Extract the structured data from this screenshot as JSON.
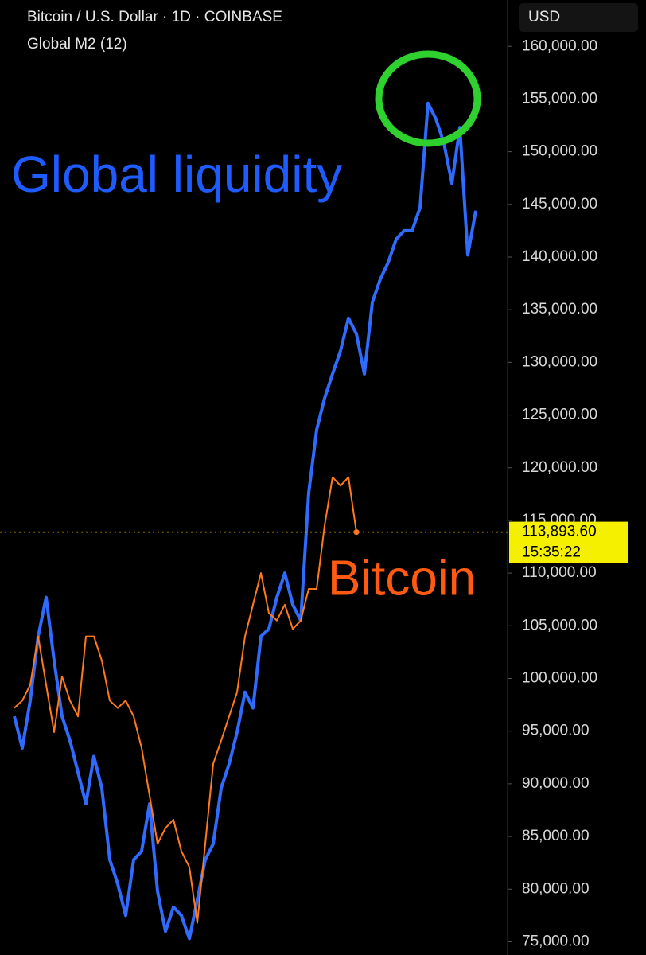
{
  "chart_data": {
    "type": "line",
    "annotations": [
      "Global liquidity",
      "Bitcoin"
    ],
    "currency": "USD",
    "series": [
      {
        "name": "Global M2 (12)",
        "color": "#2f6bff",
        "values": [
          96400,
          93400,
          97900,
          104000,
          107700,
          101700,
          96400,
          94100,
          91100,
          88100,
          92600,
          89600,
          82800,
          80500,
          77500,
          82800,
          83600,
          88100,
          79800,
          76000,
          78300,
          77500,
          75300,
          79000,
          82800,
          84300,
          89600,
          91900,
          94900,
          98700,
          97200,
          104000,
          104700,
          107700,
          110000,
          107000,
          105500,
          117600,
          123600,
          126600,
          128900,
          131100,
          134200,
          132700,
          128900,
          135700,
          137900,
          139500,
          141700,
          142500,
          142500,
          144700,
          154600,
          153100,
          150800,
          147000,
          152300,
          140200,
          144400
        ]
      },
      {
        "name": "Bitcoin / U.S. Dollar · 1D · COINBASE",
        "color": "#ff7a1a",
        "values": [
          97200,
          97900,
          99400,
          104000,
          99400,
          94900,
          100200,
          97900,
          96400,
          104000,
          104000,
          101700,
          97900,
          97200,
          97900,
          96400,
          93400,
          88900,
          84300,
          85800,
          86600,
          83600,
          82100,
          76800,
          84300,
          91900,
          94100,
          96400,
          98700,
          104000,
          107000,
          110000,
          106200,
          105500,
          107000,
          104700,
          105500,
          108500,
          108500,
          114500,
          119100,
          118300,
          119100,
          113893.6,
          null,
          null,
          null,
          null,
          null,
          null,
          null,
          null,
          null,
          null,
          null,
          null,
          null,
          null,
          null
        ]
      }
    ],
    "last_price": {
      "value": 113893.6,
      "label": "113,893.60"
    },
    "countdown": "15:35:22",
    "ylim": [
      73750,
      164400
    ],
    "yticks": [
      {
        "value": 75000,
        "label": "75,000.00"
      },
      {
        "value": 80000,
        "label": "80,000.00"
      },
      {
        "value": 85000,
        "label": "85,000.00"
      },
      {
        "value": 90000,
        "label": "90,000.00"
      },
      {
        "value": 95000,
        "label": "95,000.00"
      },
      {
        "value": 100000,
        "label": "100,000.00"
      },
      {
        "value": 105000,
        "label": "105,000.00"
      },
      {
        "value": 110000,
        "label": "110,000.00"
      },
      {
        "value": 115000,
        "label": "115,000.00"
      },
      {
        "value": 120000,
        "label": "120,000.00"
      },
      {
        "value": 125000,
        "label": "125,000.00"
      },
      {
        "value": 130000,
        "label": "130,000.00"
      },
      {
        "value": 135000,
        "label": "135,000.00"
      },
      {
        "value": 140000,
        "label": "140,000.00"
      },
      {
        "value": 145000,
        "label": "145,000.00"
      },
      {
        "value": 150000,
        "label": "150,000.00"
      },
      {
        "value": 155000,
        "label": "155,000.00"
      },
      {
        "value": 160000,
        "label": "160,000.00"
      }
    ],
    "grid": false
  }
}
